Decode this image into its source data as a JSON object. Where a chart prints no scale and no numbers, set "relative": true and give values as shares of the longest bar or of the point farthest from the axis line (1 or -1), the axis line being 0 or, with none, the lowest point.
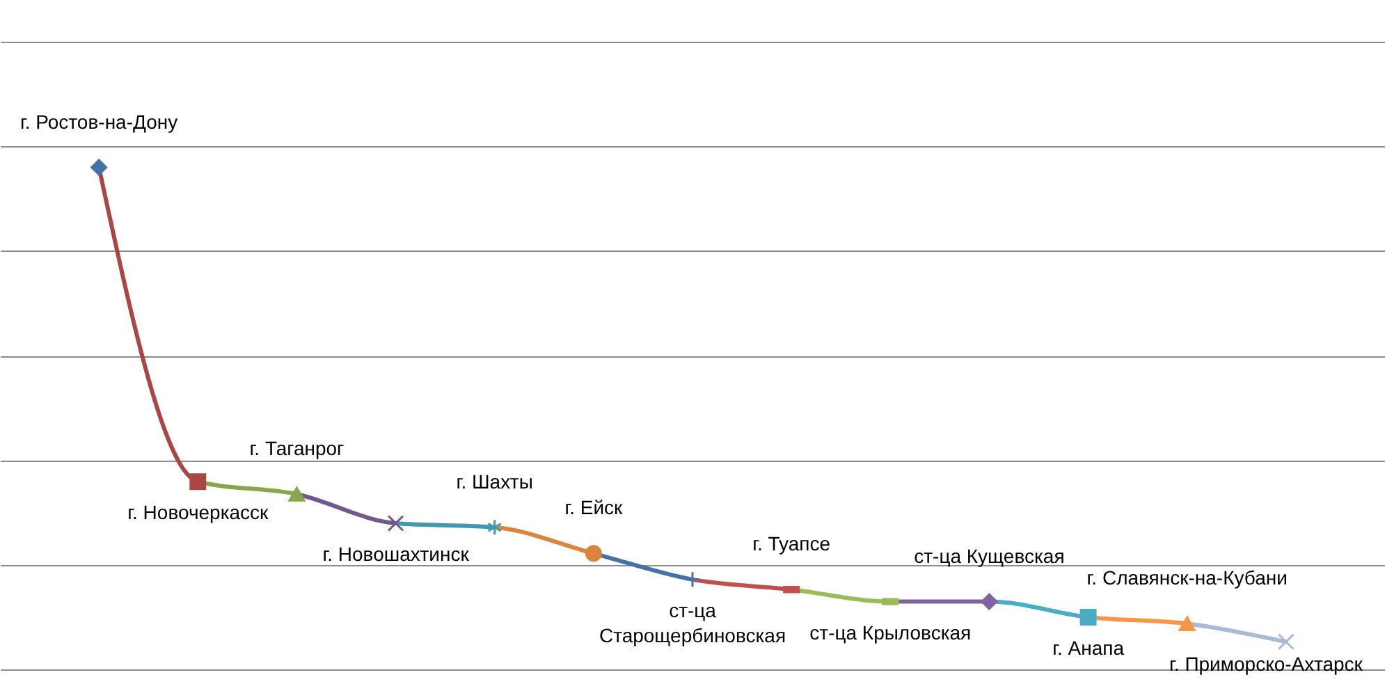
{
  "chart_data": {
    "type": "line",
    "relative": true,
    "grid": "y",
    "marker": "diamond",
    "tick_labels": false,
    "categories": [
      "г. Ростов-на-Дону",
      "г. Новочеркасск",
      "г. Таганрог",
      "г. Новошахтинск",
      "г. Шахты",
      "г. Ейск",
      "ст-ца Старощербиновская",
      "г. Туапсе",
      "ст-ца Крыловская",
      "ст-ца Кущевская",
      "г. Анапа",
      "г. Славянск-на-Кубани",
      "г. Приморско-Ахтарск"
    ],
    "values": [
      1,
      0.374,
      0.349,
      0.291,
      0.283,
      0.231,
      0.179,
      0.159,
      0.135,
      0.135,
      0.104,
      0.091,
      0.055
    ],
    "colors": [
      "#4572a7",
      "#aa4643",
      "#89a54e",
      "#71588f",
      "#4198af",
      "#db843d",
      "#4572a7",
      "#c0504d",
      "#9bbb59",
      "#8064a2",
      "#4bacc6",
      "#f79646",
      "#a9bad6"
    ]
  }
}
